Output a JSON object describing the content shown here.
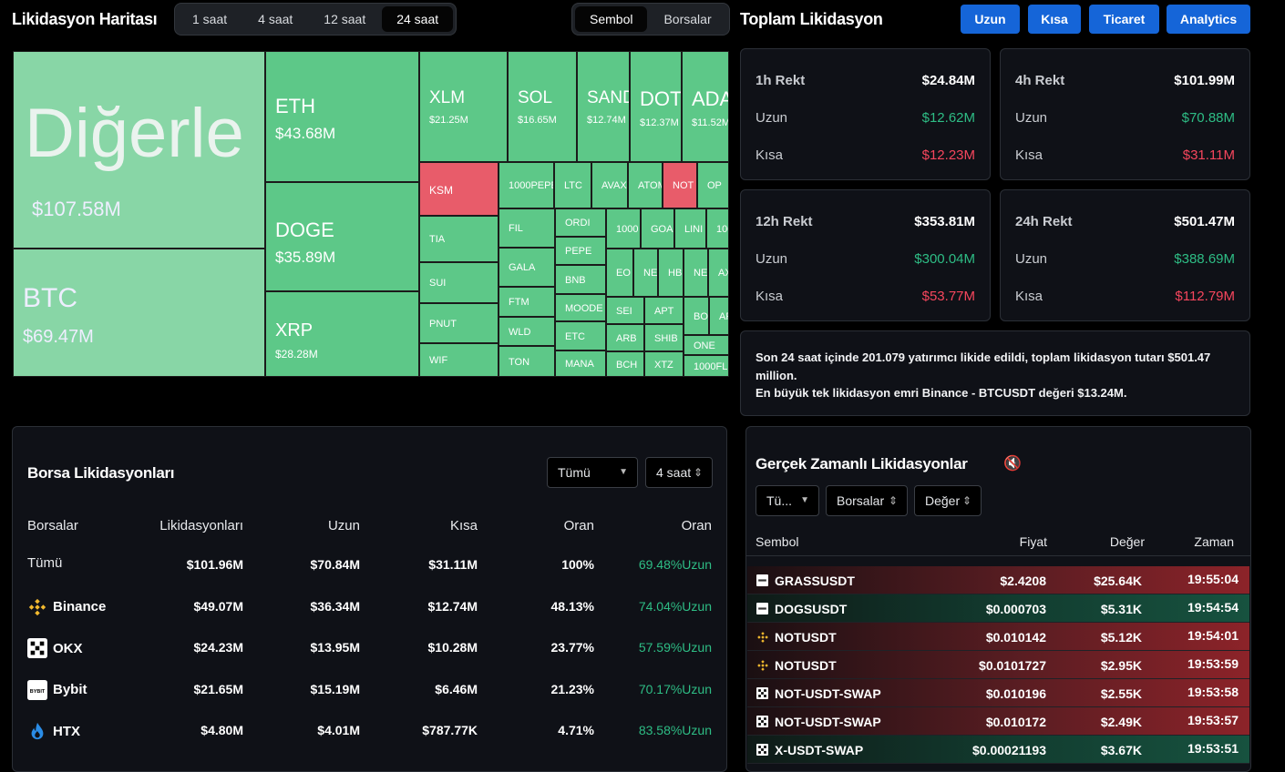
{
  "heatmap": {
    "title": "Likidasyon Haritası",
    "time_tabs": [
      "1 saat",
      "4 saat",
      "12 saat",
      "24 saat"
    ],
    "active_time": "24 saat",
    "view_tabs": [
      "Sembol",
      "Borsalar"
    ],
    "active_view": "Sembol",
    "tiles": [
      {
        "name": "Diğerle",
        "value": "$107.58M",
        "color": "#88d6a6"
      },
      {
        "name": "BTC",
        "value": "$69.47M",
        "color": "#88d6a6"
      },
      {
        "name": "ETH",
        "value": "$43.68M",
        "color": "#5dc888"
      },
      {
        "name": "DOGE",
        "value": "$35.89M",
        "color": "#5dc888"
      },
      {
        "name": "XRP",
        "value": "$28.28M",
        "color": "#5dc888"
      },
      {
        "name": "XLM",
        "value": "$21.25M",
        "color": "#5dc888"
      },
      {
        "name": "SOL",
        "value": "$16.65M",
        "color": "#5dc888"
      },
      {
        "name": "SAND",
        "value": "$12.74M",
        "color": "#5dc888"
      },
      {
        "name": "DOT",
        "value": "$12.37M",
        "color": "#5dc888"
      },
      {
        "name": "ADA",
        "value": "$11.52M",
        "color": "#5dc888"
      },
      {
        "name": "KSM",
        "value": "",
        "color": "#e85c6a"
      },
      {
        "name": "1000PEPE",
        "value": "",
        "color": "#5dc888"
      },
      {
        "name": "LTC",
        "value": "",
        "color": "#5dc888"
      },
      {
        "name": "AVAX",
        "value": "",
        "color": "#5dc888"
      },
      {
        "name": "ATOM",
        "value": "",
        "color": "#5dc888"
      },
      {
        "name": "NOT",
        "value": "",
        "color": "#e85c6a"
      },
      {
        "name": "OP",
        "value": "",
        "color": "#5dc888"
      },
      {
        "name": "TIA",
        "value": "",
        "color": "#5dc888"
      },
      {
        "name": "FIL",
        "value": "",
        "color": "#5dc888"
      },
      {
        "name": "ORDI",
        "value": "",
        "color": "#5dc888"
      },
      {
        "name": "1000",
        "value": "",
        "color": "#5dc888"
      },
      {
        "name": "GOA",
        "value": "",
        "color": "#5dc888"
      },
      {
        "name": "LINI",
        "value": "",
        "color": "#5dc888"
      },
      {
        "name": "100",
        "value": "",
        "color": "#5dc888"
      },
      {
        "name": "PEPE",
        "value": "",
        "color": "#5dc888"
      },
      {
        "name": "GALA",
        "value": "",
        "color": "#5dc888"
      },
      {
        "name": "SUI",
        "value": "",
        "color": "#5dc888"
      },
      {
        "name": "BNB",
        "value": "",
        "color": "#5dc888"
      },
      {
        "name": "EO",
        "value": "",
        "color": "#5dc888"
      },
      {
        "name": "NE",
        "value": "",
        "color": "#5dc888"
      },
      {
        "name": "HB",
        "value": "",
        "color": "#5dc888"
      },
      {
        "name": "NE",
        "value": "",
        "color": "#5dc888"
      },
      {
        "name": "AX",
        "value": "",
        "color": "#5dc888"
      },
      {
        "name": "FTM",
        "value": "",
        "color": "#5dc888"
      },
      {
        "name": "MOODE",
        "value": "",
        "color": "#5dc888"
      },
      {
        "name": "SEI",
        "value": "",
        "color": "#5dc888"
      },
      {
        "name": "APT",
        "value": "",
        "color": "#5dc888"
      },
      {
        "name": "BO",
        "value": "",
        "color": "#5dc888"
      },
      {
        "name": "AF",
        "value": "",
        "color": "#5dc888"
      },
      {
        "name": "PNUT",
        "value": "",
        "color": "#5dc888"
      },
      {
        "name": "WLD",
        "value": "",
        "color": "#5dc888"
      },
      {
        "name": "ETC",
        "value": "",
        "color": "#5dc888"
      },
      {
        "name": "ARB",
        "value": "",
        "color": "#5dc888"
      },
      {
        "name": "SHIB",
        "value": "",
        "color": "#5dc888"
      },
      {
        "name": "ONE",
        "value": "",
        "color": "#5dc888"
      },
      {
        "name": "WIF",
        "value": "",
        "color": "#5dc888"
      },
      {
        "name": "TON",
        "value": "",
        "color": "#5dc888"
      },
      {
        "name": "MANA",
        "value": "",
        "color": "#5dc888"
      },
      {
        "name": "BCH",
        "value": "",
        "color": "#5dc888"
      },
      {
        "name": "XTZ",
        "value": "",
        "color": "#5dc888"
      },
      {
        "name": "1000FL",
        "value": "",
        "color": "#5dc888"
      }
    ]
  },
  "total": {
    "title": "Toplam Likidasyon",
    "buttons": [
      "Uzun",
      "Kısa",
      "Ticaret",
      "Analytics"
    ],
    "cards": [
      {
        "label": "1h Rekt",
        "total": "$24.84M",
        "long_label": "Uzun",
        "long": "$12.62M",
        "short_label": "Kısa",
        "short": "$12.23M"
      },
      {
        "label": "4h Rekt",
        "total": "$101.99M",
        "long_label": "Uzun",
        "long": "$70.88M",
        "short_label": "Kısa",
        "short": "$31.11M"
      },
      {
        "label": "12h Rekt",
        "total": "$353.81M",
        "long_label": "Uzun",
        "long": "$300.04M",
        "short_label": "Kısa",
        "short": "$53.77M"
      },
      {
        "label": "24h Rekt",
        "total": "$501.47M",
        "long_label": "Uzun",
        "long": "$388.69M",
        "short_label": "Kısa",
        "short": "$112.79M"
      }
    ],
    "summary_line1": "Son 24 saat içinde 201.079 yatırımcı likide edildi, toplam likidasyon tutarı $501.47 million.",
    "summary_line2": "En büyük tek likidasyon emri Binance - BTCUSDT değeri $13.24M."
  },
  "exchange": {
    "title": "Borsa Likidasyonları",
    "filter": "Tümü",
    "period": "4 saat",
    "headers": [
      "Borsalar",
      "Likidasyonları",
      "Uzun",
      "Kısa",
      "Oran",
      "Oran"
    ],
    "rows": [
      {
        "name": "Tümü",
        "icon": "",
        "liq": "$101.96M",
        "long": "$70.84M",
        "short": "$31.11M",
        "ratio": "100%",
        "long_ratio": "69.48%Uzun"
      },
      {
        "name": "Binance",
        "icon": "binance-icon",
        "liq": "$49.07M",
        "long": "$36.34M",
        "short": "$12.74M",
        "ratio": "48.13%",
        "long_ratio": "74.04%Uzun"
      },
      {
        "name": "OKX",
        "icon": "okx-icon",
        "liq": "$24.23M",
        "long": "$13.95M",
        "short": "$10.28M",
        "ratio": "23.77%",
        "long_ratio": "57.59%Uzun"
      },
      {
        "name": "Bybit",
        "icon": "bybit-icon",
        "liq": "$21.65M",
        "long": "$15.19M",
        "short": "$6.46M",
        "ratio": "21.23%",
        "long_ratio": "70.17%Uzun"
      },
      {
        "name": "HTX",
        "icon": "htx-icon",
        "liq": "$4.80M",
        "long": "$4.01M",
        "short": "$787.77K",
        "ratio": "4.71%",
        "long_ratio": "83.58%Uzun"
      }
    ]
  },
  "realtime": {
    "title": "Gerçek Zamanlı Likidasyonlar",
    "filters": [
      "Tü...",
      "Borsalar",
      "Değer"
    ],
    "headers": [
      "Sembol",
      "Fiyat",
      "Değer",
      "Zaman"
    ],
    "rows": [
      {
        "symbol": "GRASSUSDT",
        "exchange": "bybit",
        "price": "$2.4208",
        "value": "$25.64K",
        "time": "19:55:04",
        "side": "long"
      },
      {
        "symbol": "DOGSUSDT",
        "exchange": "bybit",
        "price": "$0.000703",
        "value": "$5.31K",
        "time": "19:54:54",
        "side": "short"
      },
      {
        "symbol": "NOTUSDT",
        "exchange": "binance",
        "price": "$0.010142",
        "value": "$5.12K",
        "time": "19:54:01",
        "side": "long"
      },
      {
        "symbol": "NOTUSDT",
        "exchange": "binance",
        "price": "$0.0101727",
        "value": "$2.95K",
        "time": "19:53:59",
        "side": "long"
      },
      {
        "symbol": "NOT-USDT-SWAP",
        "exchange": "okx",
        "price": "$0.010196",
        "value": "$2.55K",
        "time": "19:53:58",
        "side": "long"
      },
      {
        "symbol": "NOT-USDT-SWAP",
        "exchange": "okx",
        "price": "$0.010172",
        "value": "$2.49K",
        "time": "19:53:57",
        "side": "long"
      },
      {
        "symbol": "X-USDT-SWAP",
        "exchange": "okx",
        "price": "$0.00021193",
        "value": "$3.67K",
        "time": "19:53:51",
        "side": "short"
      }
    ]
  }
}
